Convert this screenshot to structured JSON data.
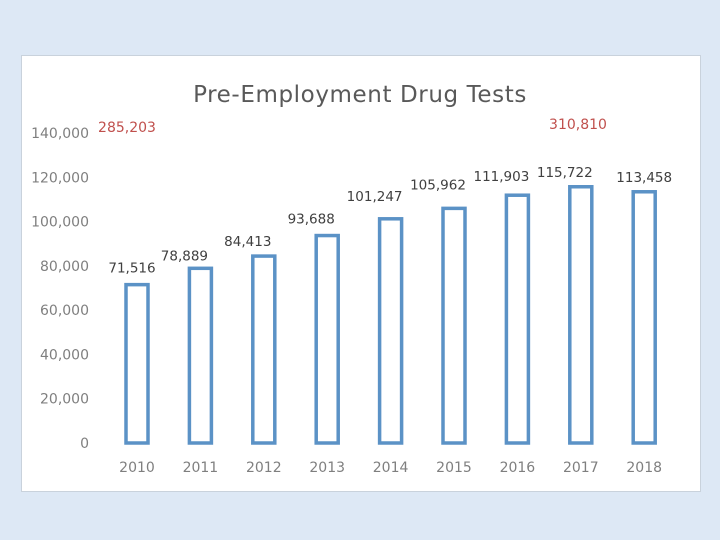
{
  "chart_data": {
    "type": "bar",
    "title": "Pre-Employment Drug Tests",
    "categories": [
      "2010",
      "2011",
      "2012",
      "2013",
      "2014",
      "2015",
      "2016",
      "2017",
      "2018"
    ],
    "values": [
      71516,
      78889,
      84413,
      93688,
      101247,
      105962,
      111903,
      115722,
      113458
    ],
    "data_labels": [
      "71,516",
      "78,889",
      "84,413",
      "93,688",
      "101,247",
      "105,962",
      "111,903",
      "115,722",
      "113,458"
    ],
    "yticks": [
      0,
      20000,
      40000,
      60000,
      80000,
      100000,
      120000,
      140000
    ],
    "ytick_labels": [
      "0",
      "20,000",
      "40,000",
      "60,000",
      "80,000",
      "100,000",
      "120,000",
      "140,000"
    ],
    "ylim": [
      0,
      140000
    ],
    "xlabel": "",
    "ylabel": "",
    "grid": false,
    "annotations": [
      {
        "text": "285,203",
        "near": "2010",
        "position": "top-left"
      },
      {
        "text": "310,810",
        "near": "2016",
        "position": "top-right"
      }
    ],
    "colors": {
      "bar_stroke": "#5b92c6",
      "bar_fill": "#ffffff",
      "annotation": "#c0504d",
      "data_label": "#404040",
      "axis_text": "#7f7f7f",
      "title": "#595959"
    }
  }
}
